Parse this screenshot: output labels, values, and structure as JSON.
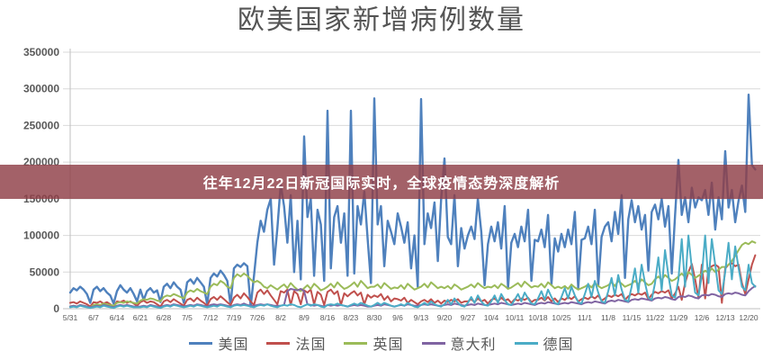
{
  "overlay_banner": {
    "text": "往年12月22日新冠国际实时，全球疫情态势深度解析",
    "background": "#8F3E47"
  },
  "colors": {
    "title_text": "#555555",
    "axis_text": "#595959",
    "gridline": "#d9d9d9",
    "axis_line": "#bfbfbf",
    "banner_text": "#ffffff"
  },
  "chart_data": {
    "type": "line",
    "title": "欧美国家新增病例数量",
    "x_tick_labels": [
      "5/31",
      "6/7",
      "6/14",
      "6/21",
      "6/28",
      "7/5",
      "7/12",
      "7/19",
      "7/26",
      "8/2",
      "8/9",
      "8/16",
      "8/23",
      "8/30",
      "9/6",
      "9/13",
      "9/20",
      "9/27",
      "10/4",
      "10/11",
      "10/18",
      "10/25",
      "11/1",
      "11/8",
      "11/15",
      "11/22",
      "11/29",
      "12/6",
      "12/13",
      "12/20"
    ],
    "days_per_tick": 7,
    "x_range": [
      "5/31",
      "12/22"
    ],
    "ylim": [
      0,
      350000
    ],
    "y_ticks": [
      0,
      50000,
      100000,
      150000,
      200000,
      250000,
      300000,
      350000
    ],
    "grid": true,
    "legend_position": "bottom",
    "series": [
      {
        "name": "美国",
        "key": "usa",
        "color": "#4F81BD",
        "width": 2.4,
        "values": [
          22000,
          28000,
          25000,
          30000,
          26000,
          20000,
          8000,
          26000,
          30000,
          24000,
          28000,
          22000,
          18000,
          7000,
          24000,
          32000,
          26000,
          22000,
          28000,
          20000,
          10000,
          26000,
          12000,
          24000,
          28000,
          22000,
          25000,
          9000,
          30000,
          34000,
          28000,
          36000,
          30000,
          26000,
          8000,
          36000,
          40000,
          34000,
          42000,
          36000,
          30000,
          6000,
          42000,
          48000,
          44000,
          52000,
          46000,
          38000,
          5000,
          55000,
          60000,
          57000,
          62000,
          58000,
          3000,
          45000,
          90000,
          120000,
          105000,
          135000,
          150000,
          60000,
          110000,
          170000,
          140000,
          90000,
          155000,
          50000,
          120000,
          40000,
          235000,
          125000,
          150000,
          45000,
          135000,
          115000,
          38000,
          270000,
          55000,
          125000,
          140000,
          90000,
          130000,
          45000,
          270000,
          48000,
          140000,
          115000,
          160000,
          95000,
          35000,
          287000,
          115000,
          140000,
          58000,
          120000,
          105000,
          88000,
          130000,
          112000,
          90000,
          118000,
          55000,
          100000,
          30000,
          286000,
          88000,
          130000,
          110000,
          145000,
          65000,
          150000,
          205000,
          98000,
          88000,
          155000,
          58000,
          110000,
          82000,
          100000,
          112000,
          95000,
          150000,
          105000,
          32000,
          88000,
          112000,
          92000,
          118000,
          82000,
          140000,
          28000,
          90000,
          102000,
          84000,
          112000,
          92000,
          135000,
          38000,
          94000,
          92000,
          108000,
          84000,
          128000,
          33000,
          96000,
          78000,
          102000,
          84000,
          108000,
          88000,
          132000,
          28000,
          94000,
          96000,
          112000,
          88000,
          135000,
          32000,
          98000,
          112000,
          118000,
          92000,
          132000,
          102000,
          155000,
          42000,
          122000,
          148000,
          118000,
          140000,
          108000,
          128000,
          52000,
          132000,
          142000,
          122000,
          150000,
          112000,
          140000,
          48000,
          128000,
          203000,
          128000,
          152000,
          118000,
          165000,
          138000,
          152000,
          148000,
          162000,
          128000,
          172000,
          108000,
          152000,
          122000,
          215000,
          138000,
          162000,
          118000,
          148000,
          168000,
          132000,
          292000,
          196000,
          190000
        ]
      },
      {
        "name": "法国",
        "key": "france",
        "color": "#C0504D",
        "width": 2,
        "values": [
          8000,
          9000,
          7000,
          10000,
          8000,
          6000,
          3000,
          9000,
          8000,
          10000,
          7000,
          9000,
          6000,
          3000,
          10000,
          9000,
          11000,
          8000,
          10000,
          7000,
          4000,
          9000,
          11000,
          8000,
          10000,
          9000,
          6000,
          3000,
          10000,
          12000,
          9000,
          13000,
          10000,
          7000,
          4000,
          12000,
          14000,
          10000,
          15000,
          11000,
          8000,
          4000,
          13000,
          16000,
          12000,
          17000,
          13000,
          9000,
          5000,
          15000,
          19000,
          14000,
          21000,
          16000,
          10000,
          5000,
          22000,
          26000,
          20000,
          25000,
          18000,
          12000,
          6000,
          24000,
          22000,
          26000,
          5000,
          24000,
          20000,
          6000,
          25000,
          22000,
          26000,
          6000,
          23000,
          19000,
          5000,
          23000,
          26000,
          20000,
          24000,
          5000,
          21000,
          17000,
          21000,
          24000,
          18000,
          22000,
          6000,
          19000,
          15000,
          18000,
          16000,
          20000,
          12000,
          17000,
          10000,
          14000,
          13000,
          11000,
          15000,
          8000,
          12000,
          9000,
          6000,
          10000,
          12000,
          9000,
          13000,
          8000,
          11000,
          7000,
          11000,
          9000,
          12000,
          10000,
          13000,
          8000,
          10000,
          10000,
          13000,
          9000,
          14000,
          10000,
          12000,
          7000,
          12000,
          14000,
          10000,
          15000,
          11000,
          13000,
          8000,
          13000,
          11000,
          14000,
          12000,
          15000,
          9000,
          12000,
          12000,
          15000,
          11000,
          16000,
          10000,
          14000,
          9000,
          14000,
          12000,
          16000,
          13000,
          17000,
          10000,
          13000,
          15000,
          13000,
          17000,
          14000,
          18000,
          11000,
          14000,
          18000,
          16000,
          19000,
          17000,
          20000,
          12000,
          17000,
          20000,
          18000,
          21000,
          19000,
          22000,
          13000,
          19000,
          23000,
          21000,
          24000,
          22000,
          25000,
          14000,
          21000,
          30000,
          12000,
          35000,
          50000,
          61000,
          40000,
          15000,
          60000,
          14000,
          55000,
          58000,
          60000,
          57000,
          8000,
          55000,
          60000,
          62000,
          58000,
          60000,
          35000,
          20000,
          40000,
          60000,
          73000
        ]
      },
      {
        "name": "英国",
        "key": "uk",
        "color": "#9BBB59",
        "width": 2,
        "values": [
          3000,
          4000,
          3000,
          5000,
          4000,
          3000,
          2000,
          5000,
          6000,
          5000,
          7000,
          6000,
          5000,
          4000,
          8000,
          9000,
          8000,
          10000,
          9000,
          8000,
          7000,
          11000,
          13000,
          12000,
          14000,
          13000,
          11000,
          10000,
          16000,
          18000,
          17000,
          20000,
          18000,
          16000,
          14000,
          22000,
          25000,
          23000,
          27000,
          24000,
          22000,
          20000,
          30000,
          34000,
          32000,
          38000,
          35000,
          30000,
          28000,
          42000,
          47000,
          44000,
          48000,
          45000,
          40000,
          36000,
          38000,
          35000,
          30000,
          28000,
          32000,
          29000,
          26000,
          30000,
          33000,
          28000,
          35000,
          30000,
          26000,
          24000,
          28000,
          32000,
          27000,
          34000,
          30000,
          25000,
          27000,
          30000,
          34000,
          29000,
          36000,
          31000,
          27000,
          29000,
          32000,
          36000,
          30000,
          38000,
          33000,
          28000,
          30000,
          30000,
          33000,
          28000,
          35000,
          31000,
          27000,
          29000,
          28000,
          32000,
          27000,
          34000,
          30000,
          26000,
          28000,
          30000,
          34000,
          29000,
          36000,
          32000,
          28000,
          30000,
          28000,
          31000,
          27000,
          33000,
          30000,
          26000,
          28000,
          30000,
          33000,
          29000,
          35000,
          31000,
          28000,
          30000,
          29000,
          32000,
          28000,
          34000,
          31000,
          27000,
          29000,
          32000,
          35000,
          30000,
          37000,
          33000,
          29000,
          31000,
          30000,
          34000,
          29000,
          36000,
          32000,
          28000,
          30000,
          28000,
          31000,
          27000,
          33000,
          29000,
          26000,
          28000,
          30000,
          33000,
          29000,
          35000,
          31000,
          28000,
          30000,
          32000,
          36000,
          31000,
          38000,
          34000,
          30000,
          32000,
          34000,
          38000,
          33000,
          40000,
          36000,
          32000,
          34000,
          40000,
          44000,
          39000,
          46000,
          42000,
          38000,
          40000,
          44000,
          48000,
          43000,
          50000,
          46000,
          42000,
          45000,
          48000,
          52000,
          49000,
          55000,
          50000,
          53000,
          57000,
          57000,
          60000,
          65000,
          72000,
          80000,
          87000,
          90000,
          88000,
          92000,
          90000
        ]
      },
      {
        "name": "意大利",
        "key": "italy",
        "color": "#8064A2",
        "width": 2,
        "values": [
          3000,
          4000,
          3000,
          5000,
          4000,
          3000,
          2000,
          3000,
          4000,
          3000,
          5000,
          4000,
          3000,
          2000,
          4000,
          5000,
          4000,
          5000,
          4000,
          3000,
          3000,
          3000,
          4000,
          3000,
          5000,
          4000,
          3000,
          2000,
          4000,
          5000,
          4000,
          6000,
          5000,
          4000,
          3000,
          4000,
          5000,
          4000,
          6000,
          5000,
          4000,
          3000,
          5000,
          6000,
          5000,
          6000,
          5000,
          4000,
          3000,
          5000,
          6000,
          5000,
          7000,
          5000,
          4000,
          4000,
          5000,
          6000,
          5000,
          6000,
          5000,
          4000,
          4000,
          4000,
          5000,
          24000,
          27000,
          26000,
          25000,
          27000,
          24000,
          6000,
          5000,
          4000,
          5000,
          4000,
          3000,
          5000,
          4000,
          5000,
          4000,
          5000,
          4000,
          3000,
          4000,
          5000,
          4000,
          5000,
          4000,
          3000,
          3000,
          4000,
          5000,
          4000,
          6000,
          5000,
          4000,
          3000,
          4000,
          5000,
          4000,
          6000,
          5000,
          4000,
          4000,
          5000,
          6000,
          5000,
          6000,
          5000,
          4000,
          4000,
          5000,
          6000,
          5000,
          7000,
          6000,
          5000,
          4000,
          5000,
          6000,
          5000,
          7000,
          6000,
          5000,
          5000,
          6000,
          7000,
          6000,
          8000,
          7000,
          6000,
          5000,
          6000,
          7000,
          6000,
          8000,
          7000,
          6000,
          5000,
          7000,
          8000,
          7000,
          9000,
          8000,
          7000,
          6000,
          7000,
          8000,
          7000,
          9000,
          8000,
          7000,
          6000,
          8000,
          9000,
          8000,
          10000,
          9000,
          8000,
          7000,
          10000,
          11000,
          10000,
          12000,
          11000,
          10000,
          9000,
          12000,
          13000,
          12000,
          14000,
          13000,
          12000,
          11000,
          14000,
          15000,
          14000,
          16000,
          15000,
          13000,
          12000,
          16000,
          17000,
          16000,
          18000,
          17000,
          15000,
          14000,
          18000,
          19000,
          18000,
          20000,
          19000,
          17000,
          16000,
          20000,
          21000,
          20000,
          22000,
          21000,
          19000,
          18000,
          24000,
          28000,
          31000
        ]
      },
      {
        "name": "德国",
        "key": "germany",
        "color": "#4BACC6",
        "width": 2,
        "values": [
          2000,
          3000,
          2000,
          4000,
          3000,
          2000,
          1000,
          2000,
          3000,
          2000,
          4000,
          3000,
          2000,
          1000,
          3000,
          4000,
          3000,
          4000,
          3000,
          2000,
          2000,
          2000,
          3000,
          2000,
          4000,
          3000,
          2000,
          1000,
          3000,
          4000,
          3000,
          5000,
          4000,
          3000,
          2000,
          3000,
          4000,
          3000,
          5000,
          4000,
          3000,
          2000,
          3000,
          4000,
          3000,
          5000,
          4000,
          3000,
          2000,
          4000,
          5000,
          4000,
          5000,
          4000,
          3000,
          2000,
          4000,
          5000,
          4000,
          6000,
          4000,
          3000,
          2000,
          4000,
          5000,
          4000,
          6000,
          5000,
          3000,
          2000,
          4000,
          6000,
          4000,
          6000,
          5000,
          3000,
          2000,
          5000,
          6000,
          5000,
          7000,
          5000,
          4000,
          3000,
          5000,
          7000,
          5000,
          8000,
          6000,
          4000,
          3000,
          5000,
          8000,
          5000,
          8000,
          6000,
          4000,
          3000,
          4000,
          6000,
          4000,
          8000,
          5000,
          3000,
          2000,
          5000,
          8000,
          5000,
          10000,
          6000,
          4000,
          3000,
          6000,
          12000,
          6000,
          14000,
          8000,
          4000,
          3000,
          8000,
          16000,
          8000,
          18000,
          10000,
          5000,
          4000,
          10000,
          18000,
          8000,
          20000,
          12000,
          6000,
          5000,
          12000,
          20000,
          10000,
          22000,
          14000,
          7000,
          6000,
          14000,
          24000,
          12000,
          26000,
          16000,
          8000,
          6000,
          16000,
          28000,
          14000,
          30000,
          18000,
          9000,
          7000,
          20000,
          34000,
          16000,
          38000,
          22000,
          10000,
          8000,
          24000,
          42000,
          18000,
          46000,
          26000,
          12000,
          10000,
          30000,
          55000,
          22000,
          60000,
          35000,
          15000,
          12000,
          35000,
          70000,
          25000,
          80000,
          45000,
          18000,
          15000,
          40000,
          95000,
          30000,
          100000,
          55000,
          22000,
          18000,
          45000,
          100000,
          35000,
          95000,
          60000,
          25000,
          20000,
          50000,
          90000,
          40000,
          85000,
          55000,
          30000,
          25000,
          60000,
          35000,
          30000
        ]
      }
    ]
  }
}
